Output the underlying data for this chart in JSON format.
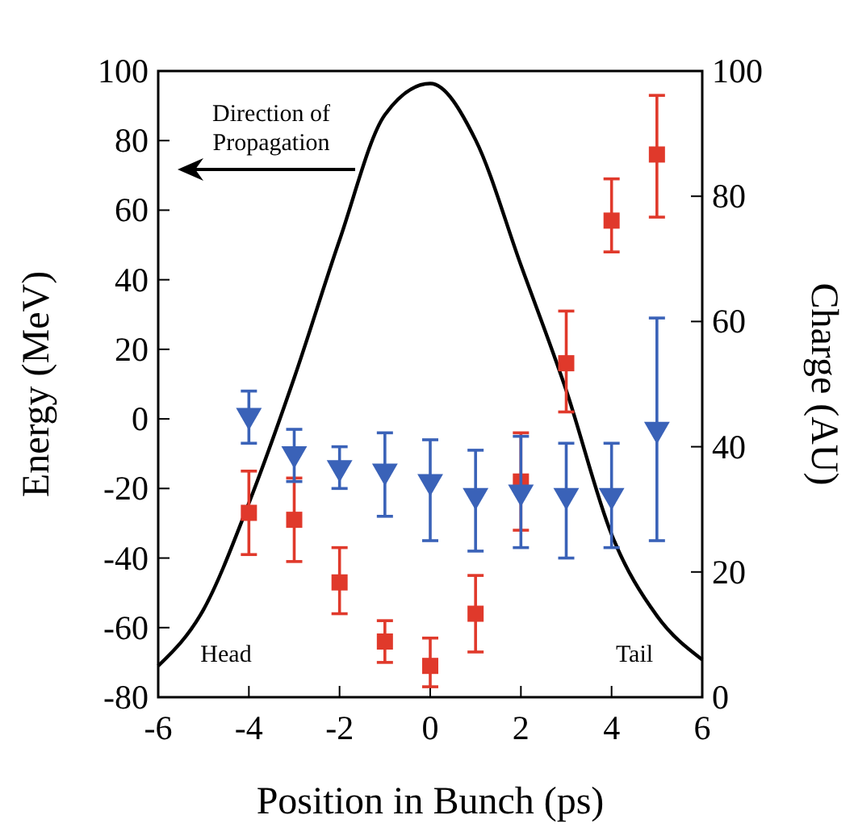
{
  "chart_data": {
    "type": "scatter",
    "xlabel": "Position in Bunch (ps)",
    "ylabel": "Energy (MeV)",
    "y2label": "Charge (AU)",
    "xlim": [
      -6,
      6
    ],
    "xticks": [
      -6,
      -4,
      -2,
      0,
      2,
      4,
      6
    ],
    "ylim": [
      -80,
      100
    ],
    "yticks": [
      -80,
      -60,
      -40,
      -20,
      0,
      20,
      40,
      60,
      80,
      100
    ],
    "y2lim": [
      0,
      100
    ],
    "y2ticks": [
      0,
      20,
      40,
      60,
      80,
      100
    ],
    "grid": false,
    "annotations": [
      "Direction of Propagation",
      "Head",
      "Tail"
    ],
    "series": [
      {
        "type": "line",
        "axis": "y2",
        "color": "#000000",
        "line_style": "solid",
        "x": [
          -6,
          -5,
          -4,
          -3,
          -2,
          -1,
          0,
          1,
          2,
          3,
          4,
          5,
          6
        ],
        "values": [
          5,
          14,
          31,
          51,
          73,
          93,
          98,
          89,
          69,
          49,
          26,
          13,
          6
        ]
      },
      {
        "color": "#e0392b",
        "marker": "square",
        "x": [
          -4,
          -3,
          -2,
          -1,
          0,
          1,
          2,
          3,
          4,
          5
        ],
        "values": [
          -27,
          -29,
          -47,
          -64,
          -71,
          -56,
          -18,
          16,
          57,
          76
        ],
        "errors": [
          [
            -39,
            -15
          ],
          [
            -41,
            -17
          ],
          [
            -56,
            -37
          ],
          [
            -70,
            -58
          ],
          [
            -77,
            -63
          ],
          [
            -67,
            -45
          ],
          [
            -32,
            -4
          ],
          [
            2,
            31
          ],
          [
            48,
            69
          ],
          [
            58,
            93
          ]
        ]
      },
      {
        "color": "#3a62b8",
        "marker": "triangle",
        "x": [
          -4,
          -3,
          -2,
          -1,
          0,
          1,
          2,
          3,
          4,
          5
        ],
        "values": [
          1,
          -10,
          -14,
          -15,
          -18,
          -22,
          -21,
          -22,
          -22,
          -3
        ],
        "errors": [
          [
            -7,
            8
          ],
          [
            -18,
            -3
          ],
          [
            -20,
            -8
          ],
          [
            -28,
            -4
          ],
          [
            -35,
            -6
          ],
          [
            -38,
            -9
          ],
          [
            -37,
            -5
          ],
          [
            -40,
            -7
          ],
          [
            -37,
            -7
          ],
          [
            -35,
            29
          ]
        ]
      }
    ]
  }
}
